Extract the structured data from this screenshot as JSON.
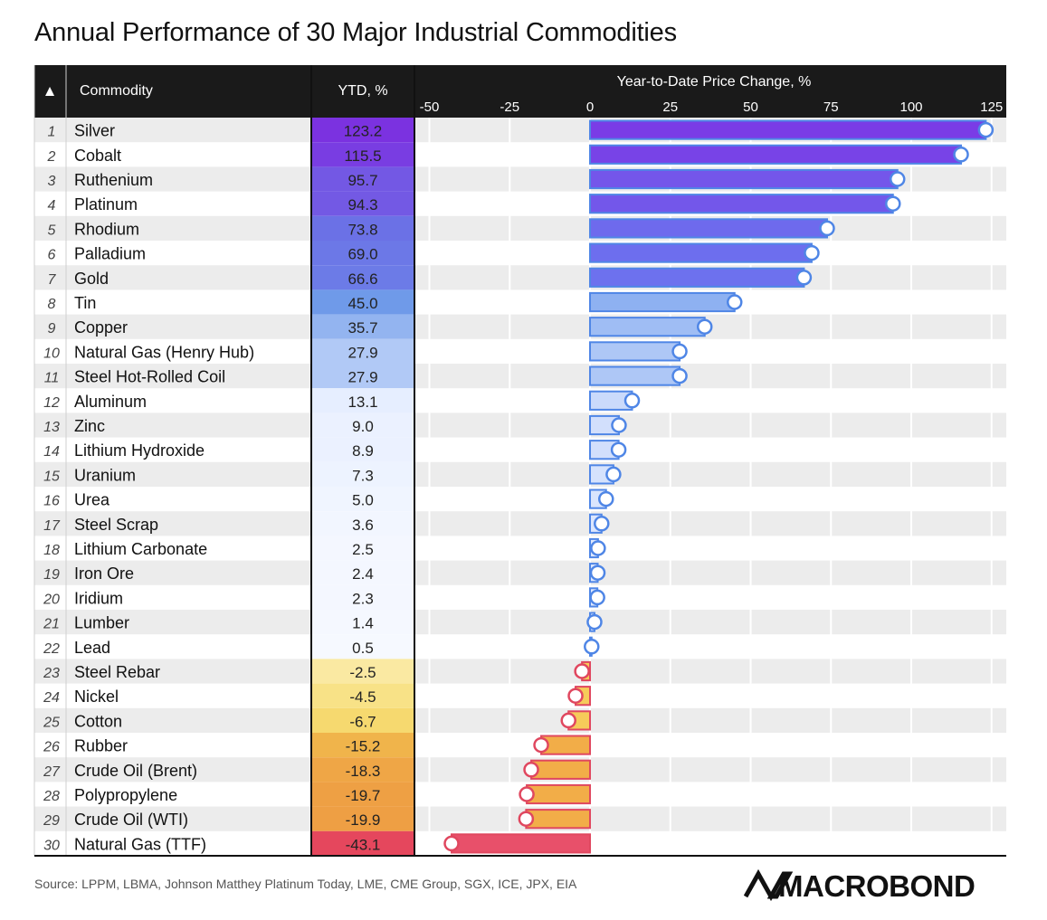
{
  "title": "Annual Performance of 30 Major Industrial Commodities",
  "source": "Source: LPPM, LBMA, Johnson Matthey Platinum Today, LME, CME Group, SGX, ICE, JPX, EIA",
  "logo_text": "MACROBOND",
  "table": {
    "sort_indicator": "▲",
    "col_commodity": "Commodity",
    "col_ytd": "YTD, %"
  },
  "colors": {
    "header_bg": "#1a1a1a",
    "row_alt": "#ececec",
    "positive_stroke": "#4f86e6",
    "negative_stroke": "#e0475f",
    "ytd_scale_top": "#7b2fe0",
    "ytd_scale_mid": "#f6f8ff",
    "ytd_scale_bottom": "#e8425a"
  },
  "chart_data": {
    "type": "bar",
    "orientation": "horizontal",
    "title": "Year-to-Date Price Change, %",
    "xlim": [
      -50,
      125
    ],
    "xticks": [
      -50,
      -25,
      0,
      25,
      50,
      75,
      100,
      125
    ],
    "grid": true,
    "categories": [
      "Silver",
      "Cobalt",
      "Ruthenium",
      "Platinum",
      "Rhodium",
      "Palladium",
      "Gold",
      "Tin",
      "Copper",
      "Natural Gas (Henry Hub)",
      "Steel Hot-Rolled Coil",
      "Aluminum",
      "Zinc",
      "Lithium Hydroxide",
      "Uranium",
      "Urea",
      "Steel Scrap",
      "Lithium Carbonate",
      "Iron Ore",
      "Iridium",
      "Lumber",
      "Lead",
      "Steel Rebar",
      "Nickel",
      "Cotton",
      "Rubber",
      "Crude Oil (Brent)",
      "Polypropylene",
      "Crude Oil (WTI)",
      "Natural Gas (TTF)"
    ],
    "values": [
      123.2,
      115.5,
      95.7,
      94.3,
      73.8,
      69.0,
      66.6,
      45.0,
      35.7,
      27.9,
      27.9,
      13.1,
      9.0,
      8.9,
      7.3,
      5.0,
      3.6,
      2.5,
      2.4,
      2.3,
      1.4,
      0.5,
      -2.5,
      -4.5,
      -6.7,
      -15.2,
      -18.3,
      -19.7,
      -19.9,
      -43.1
    ],
    "labels": [
      "123.2",
      "115.5",
      "95.7",
      "94.3",
      "73.8",
      "69.0",
      "66.6",
      "45.0",
      "35.7",
      "27.9",
      "27.9",
      "13.1",
      "9.0",
      "8.9",
      "7.3",
      "5.0",
      "3.6",
      "2.5",
      "2.4",
      "2.3",
      "1.4",
      "0.5",
      "-2.5",
      "-4.5",
      "-6.7",
      "-15.2",
      "-18.3",
      "-19.7",
      "-19.9",
      "-43.1"
    ]
  }
}
